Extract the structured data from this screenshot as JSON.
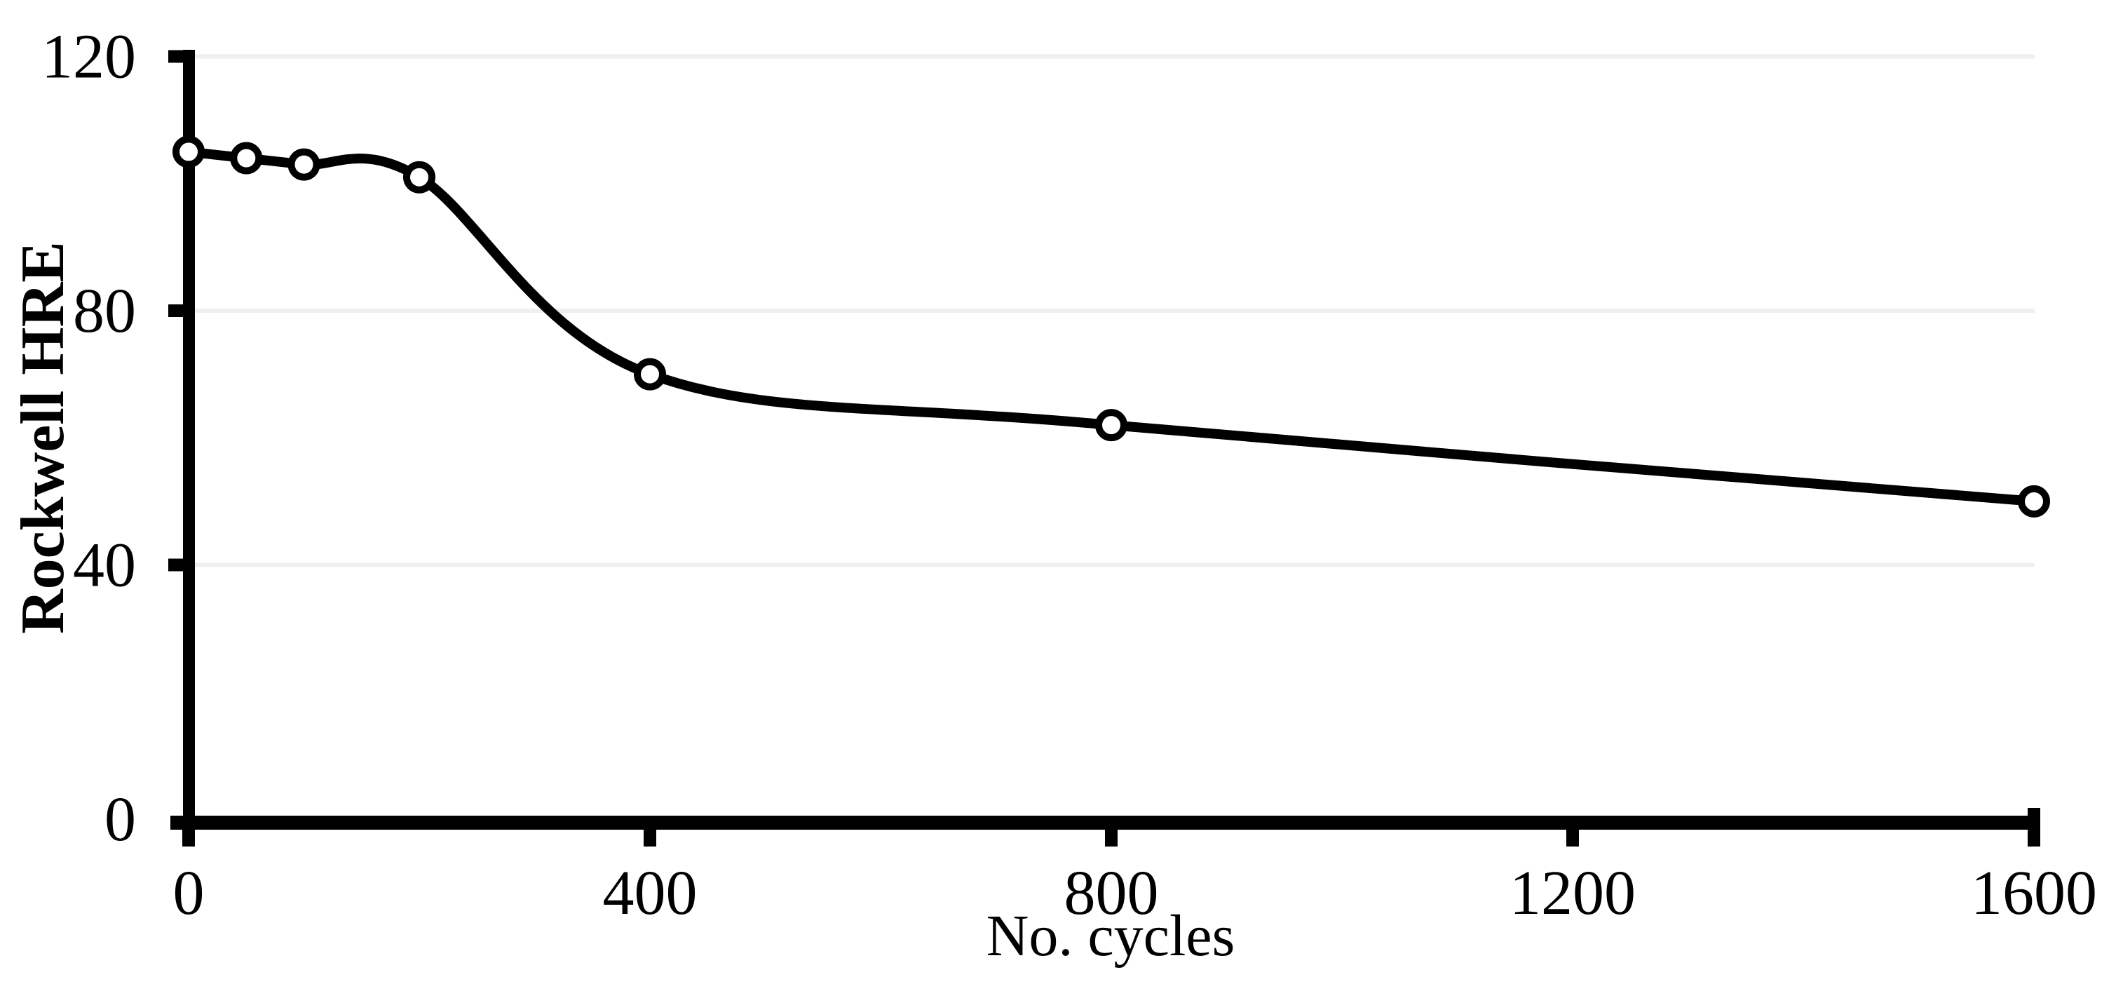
{
  "chart_data": {
    "type": "line",
    "title": "",
    "xlabel": "No. cycles",
    "ylabel": "Rockwell HRE",
    "x": [
      0,
      50,
      100,
      200,
      400,
      800,
      1600
    ],
    "series": [
      {
        "name": "Rockwell HRE",
        "values": [
          105,
          104,
          103,
          101,
          70,
          62,
          50
        ],
        "color": "#000000",
        "marker": "open-circle",
        "marker_fill": "#ffffff",
        "smooth": true
      }
    ],
    "xlim": [
      0,
      1600
    ],
    "ylim": [
      0,
      120
    ],
    "x_ticks": [
      0,
      400,
      800,
      1200,
      1600
    ],
    "y_ticks": [
      0,
      40,
      80,
      120
    ],
    "grid": "horizontal-only",
    "gridline_color": "#efefef",
    "axis_color": "#000000",
    "background_color": "#ffffff",
    "legend": "none"
  }
}
